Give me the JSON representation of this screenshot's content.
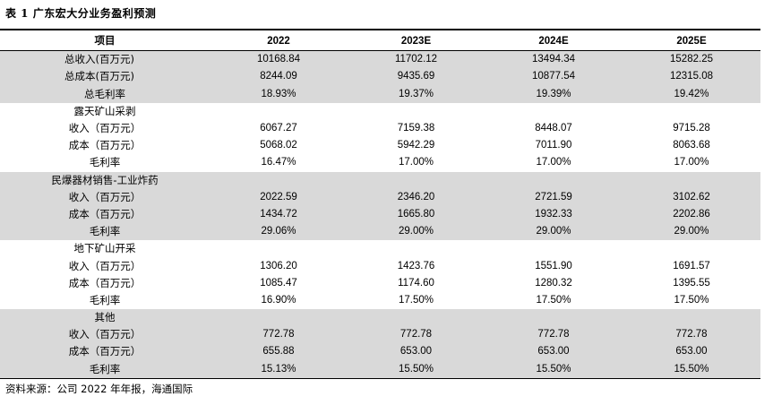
{
  "title": "表 1   广东宏大分业务盈利预测",
  "header": [
    "项目",
    "2022",
    "2023E",
    "2024E",
    "2025E"
  ],
  "rows": [
    {
      "label": "总收入(百万元)",
      "values": [
        "10168.84",
        "11702.12",
        "13494.34",
        "15282.25"
      ],
      "shade": true,
      "align": "left"
    },
    {
      "label": "总成本(百万元)",
      "values": [
        "8244.09",
        "9435.69",
        "10877.54",
        "12315.08"
      ],
      "shade": true,
      "align": "left"
    },
    {
      "label": "总毛利率",
      "values": [
        "18.93%",
        "19.37%",
        "19.39%",
        "19.42%"
      ],
      "shade": true,
      "align": "center"
    },
    {
      "label": "露天矿山采剥",
      "values": [
        "",
        "",
        "",
        ""
      ],
      "shade": false,
      "align": "center",
      "section": true
    },
    {
      "label": "收入（百万元）",
      "values": [
        "6067.27",
        "7159.38",
        "8448.07",
        "9715.28"
      ],
      "shade": false,
      "align": "center"
    },
    {
      "label": "成本（百万元）",
      "values": [
        "5068.02",
        "5942.29",
        "7011.90",
        "8063.68"
      ],
      "shade": false,
      "align": "center"
    },
    {
      "label": "毛利率",
      "values": [
        "16.47%",
        "17.00%",
        "17.00%",
        "17.00%"
      ],
      "shade": false,
      "align": "center"
    },
    {
      "label": "民爆器材销售-工业炸药",
      "values": [
        "",
        "",
        "",
        ""
      ],
      "shade": true,
      "align": "center",
      "section": true
    },
    {
      "label": "收入（百万元）",
      "values": [
        "2022.59",
        "2346.20",
        "2721.59",
        "3102.62"
      ],
      "shade": true,
      "align": "center"
    },
    {
      "label": "成本（百万元）",
      "values": [
        "1434.72",
        "1665.80",
        "1932.33",
        "2202.86"
      ],
      "shade": true,
      "align": "center"
    },
    {
      "label": "毛利率",
      "values": [
        "29.06%",
        "29.00%",
        "29.00%",
        "29.00%"
      ],
      "shade": true,
      "align": "center"
    },
    {
      "label": "地下矿山开采",
      "values": [
        "",
        "",
        "",
        ""
      ],
      "shade": false,
      "align": "center",
      "section": true
    },
    {
      "label": "收入（百万元）",
      "values": [
        "1306.20",
        "1423.76",
        "1551.90",
        "1691.57"
      ],
      "shade": false,
      "align": "center"
    },
    {
      "label": "成本（百万元）",
      "values": [
        "1085.47",
        "1174.60",
        "1280.32",
        "1395.55"
      ],
      "shade": false,
      "align": "center"
    },
    {
      "label": "毛利率",
      "values": [
        "16.90%",
        "17.50%",
        "17.50%",
        "17.50%"
      ],
      "shade": false,
      "align": "center"
    },
    {
      "label": "其他",
      "values": [
        "",
        "",
        "",
        ""
      ],
      "shade": true,
      "align": "center",
      "section": true
    },
    {
      "label": "收入（百万元）",
      "values": [
        "772.78",
        "772.78",
        "772.78",
        "772.78"
      ],
      "shade": true,
      "align": "center"
    },
    {
      "label": "成本（百万元）",
      "values": [
        "655.88",
        "653.00",
        "653.00",
        "653.00"
      ],
      "shade": true,
      "align": "center"
    },
    {
      "label": "毛利率",
      "values": [
        "15.13%",
        "15.50%",
        "15.50%",
        "15.50%"
      ],
      "shade": true,
      "align": "center"
    }
  ],
  "source": "资料来源：公司 2022 年年报，海通国际",
  "colors": {
    "shade": "#d9d9d9",
    "rule": "#000000"
  }
}
